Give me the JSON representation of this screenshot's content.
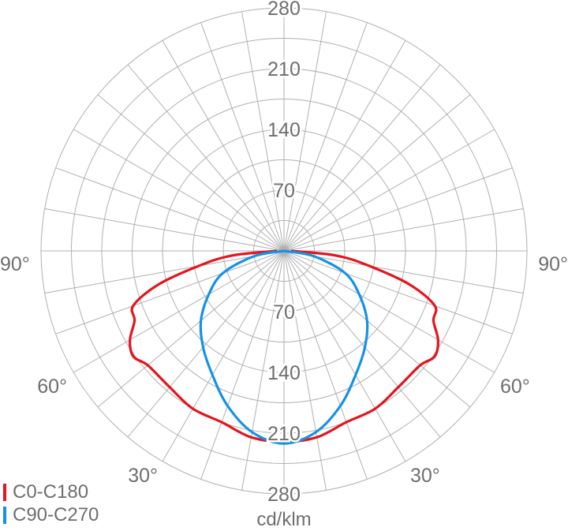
{
  "chart_data": {
    "type": "polar",
    "unit": "cd/klm",
    "radial_max": 280,
    "radial_ticks": [
      70,
      140,
      210,
      280
    ],
    "upper_tick_labels": [
      "280",
      "210",
      "140",
      "70"
    ],
    "lower_tick_labels": [
      "70",
      "140",
      "210",
      "280"
    ],
    "angle_labels": [
      "90°",
      "90°",
      "60°",
      "60°",
      "30°",
      "30°"
    ],
    "grid_step_deg": 10,
    "legend_placement": "bottom-left",
    "series": [
      {
        "name": "C0-C180",
        "color": "#e3161d",
        "angles_deg": [
          0,
          10,
          20,
          30,
          40,
          50,
          55,
          60,
          65,
          70,
          75,
          80,
          85,
          90
        ],
        "values": [
          220,
          218,
          210,
          210,
          205,
          205,
          212,
          205,
          190,
          185,
          150,
          100,
          60,
          8
        ]
      },
      {
        "name": "C90-C270",
        "color": "#1592e6",
        "angles_deg": [
          0,
          10,
          20,
          30,
          40,
          50,
          60,
          70,
          80,
          90
        ],
        "values": [
          222,
          212,
          190,
          165,
          145,
          125,
          100,
          75,
          35,
          0
        ]
      }
    ]
  }
}
